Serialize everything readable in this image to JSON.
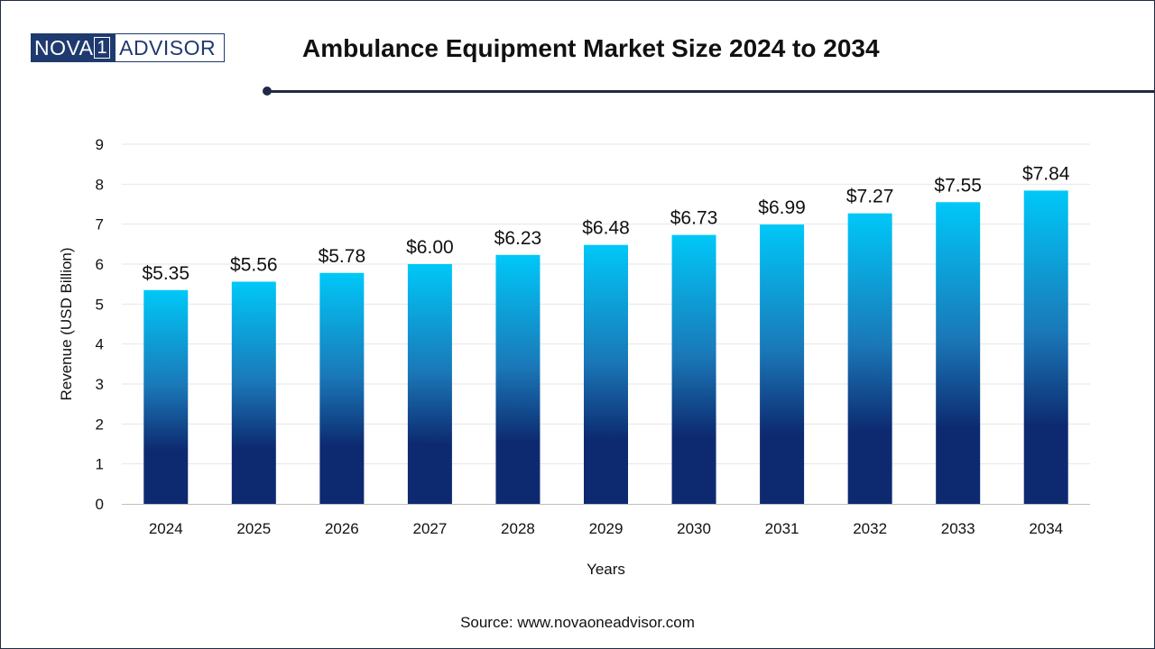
{
  "header": {
    "logo_part_a": "NOVA",
    "logo_part_num": "1",
    "logo_part_b": "ADVISOR",
    "title": "Ambulance Equipment Market Size 2024 to 2034"
  },
  "colors": {
    "bar_top": "#00c8f8",
    "bar_bottom": "#0d2a70",
    "brand": "#1f3a6e",
    "grid": "#e6e6e6"
  },
  "chart_data": {
    "type": "bar",
    "categories": [
      "2024",
      "2025",
      "2026",
      "2027",
      "2028",
      "2029",
      "2030",
      "2031",
      "2032",
      "2033",
      "2034"
    ],
    "values": [
      5.35,
      5.56,
      5.78,
      6.0,
      6.23,
      6.48,
      6.73,
      6.99,
      7.27,
      7.55,
      7.84
    ],
    "data_labels": [
      "$5.35",
      "$5.56",
      "$5.78",
      "$6.00",
      "$6.23",
      "$6.48",
      "$6.73",
      "$6.99",
      "$7.27",
      "$7.55",
      "$7.84"
    ],
    "xlabel": "Years",
    "ylabel": "Revenue (USD Billion)",
    "ylim": [
      0,
      9
    ],
    "yticks": [
      "0",
      "1",
      "2",
      "3",
      "4",
      "5",
      "6",
      "7",
      "8",
      "9"
    ],
    "grid": true,
    "legend": "none"
  },
  "footer": {
    "source": "Source: www.novaoneadvisor.com"
  }
}
